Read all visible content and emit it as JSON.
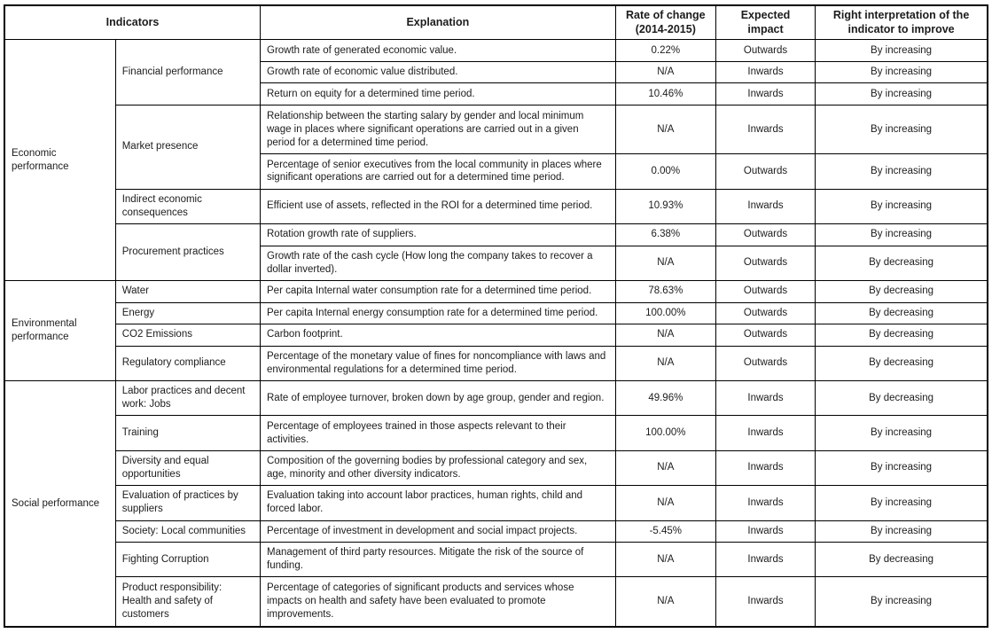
{
  "colors": {
    "border": "#000000",
    "text": "#1c1c1c",
    "background": "#ffffff"
  },
  "table": {
    "headers": [
      {
        "id": "indicators",
        "label": "Indicators",
        "colspan": 2
      },
      {
        "id": "explanation",
        "label": "Explanation"
      },
      {
        "id": "rate-of-change",
        "label": "Rate of change\n(2014-2015)"
      },
      {
        "id": "expected-impact",
        "label": "Expected\nimpact"
      },
      {
        "id": "interpretation",
        "label": "Right interpretation of the\nindicator to improve"
      }
    ],
    "groups": [
      {
        "category": "Economic performance",
        "subgroups": [
          {
            "indicator": "Financial performance",
            "rows": [
              {
                "explanation": "Growth rate of generated economic value.",
                "rate": "0.22%",
                "impact": "Outwards",
                "interpretation": "By increasing"
              },
              {
                "explanation": "Growth rate of economic value distributed.",
                "rate": "N/A",
                "impact": "Inwards",
                "interpretation": "By increasing"
              },
              {
                "explanation": "Return on equity for a determined time period.",
                "rate": "10.46%",
                "impact": "Inwards",
                "interpretation": "By increasing"
              }
            ]
          },
          {
            "indicator": "Market presence",
            "rows": [
              {
                "explanation": "Relationship between the starting salary by gender and local minimum wage in places where significant operations are carried out in a given period for a determined time period.",
                "rate": "N/A",
                "impact": "Inwards",
                "interpretation": "By increasing"
              },
              {
                "explanation": "Percentage of senior executives from the local community in places where significant operations are carried out for a determined time period.",
                "rate": "0.00%",
                "impact": "Outwards",
                "interpretation": "By increasing"
              }
            ]
          },
          {
            "indicator": "Indirect economic consequences",
            "rows": [
              {
                "explanation": "Efficient use of assets, reflected in the ROI for a determined time period.",
                "rate": "10.93%",
                "impact": "Inwards",
                "interpretation": "By increasing"
              }
            ]
          },
          {
            "indicator": "Procurement practices",
            "rows": [
              {
                "explanation": "Rotation growth rate of suppliers.",
                "rate": "6.38%",
                "impact": "Outwards",
                "interpretation": "By increasing"
              },
              {
                "explanation": "Growth rate of the cash cycle (How long the company takes to recover a dollar inverted).",
                "rate": "N/A",
                "impact": "Outwards",
                "interpretation": "By decreasing"
              }
            ]
          }
        ]
      },
      {
        "category": "Environmental performance",
        "subgroups": [
          {
            "indicator": "Water",
            "rows": [
              {
                "explanation": "Per capita Internal water consumption rate for a determined time period.",
                "rate": "78.63%",
                "impact": "Outwards",
                "interpretation": "By decreasing"
              }
            ]
          },
          {
            "indicator": "Energy",
            "rows": [
              {
                "explanation": "Per capita Internal energy consumption rate for a determined time period.",
                "rate": "100.00%",
                "impact": "Outwards",
                "interpretation": "By decreasing"
              }
            ]
          },
          {
            "indicator": "CO2 Emissions",
            "rows": [
              {
                "explanation": "Carbon footprint.",
                "rate": "N/A",
                "impact": "Outwards",
                "interpretation": "By decreasing"
              }
            ]
          },
          {
            "indicator": "Regulatory compliance",
            "rows": [
              {
                "explanation": "Percentage of the monetary value of fines for noncompliance with laws and environmental regulations for a determined time period.",
                "rate": "N/A",
                "impact": "Outwards",
                "interpretation": "By decreasing"
              }
            ]
          }
        ]
      },
      {
        "category": "Social performance",
        "subgroups": [
          {
            "indicator": "Labor practices and decent work: Jobs",
            "rows": [
              {
                "explanation": "Rate of employee turnover, broken down by age group, gender and region.",
                "rate": "49.96%",
                "impact": "Inwards",
                "interpretation": "By decreasing"
              }
            ]
          },
          {
            "indicator": "Training",
            "rows": [
              {
                "explanation": "Percentage of employees trained in those aspects relevant to their activities.",
                "rate": "100.00%",
                "impact": "Inwards",
                "interpretation": "By increasing"
              }
            ]
          },
          {
            "indicator": "Diversity and equal opportunities",
            "rows": [
              {
                "explanation": "Composition of the governing bodies by professional category and sex, age, minority and other diversity indicators.",
                "rate": "N/A",
                "impact": "Inwards",
                "interpretation": "By increasing"
              }
            ]
          },
          {
            "indicator": "Evaluation of practices by suppliers",
            "rows": [
              {
                "explanation": "Evaluation taking into account labor practices, human rights, child and forced labor.",
                "rate": "N/A",
                "impact": "Inwards",
                "interpretation": "By increasing"
              }
            ]
          },
          {
            "indicator": "Society: Local communities",
            "rows": [
              {
                "explanation": "Percentage of investment in development and social impact projects.",
                "rate": "-5.45%",
                "impact": "Inwards",
                "interpretation": "By increasing"
              }
            ]
          },
          {
            "indicator": "Fighting Corruption",
            "rows": [
              {
                "explanation": "Management of third party resources. Mitigate the risk of the source of funding.",
                "rate": "N/A",
                "impact": "Inwards",
                "interpretation": "By decreasing"
              }
            ]
          },
          {
            "indicator": "Product responsibility: Health and safety of customers",
            "rows": [
              {
                "explanation": "Percentage of categories of significant products and services whose impacts on health and safety have been evaluated to promote improvements.",
                "rate": "N/A",
                "impact": "Inwards",
                "interpretation": "By increasing"
              }
            ]
          }
        ]
      }
    ]
  }
}
